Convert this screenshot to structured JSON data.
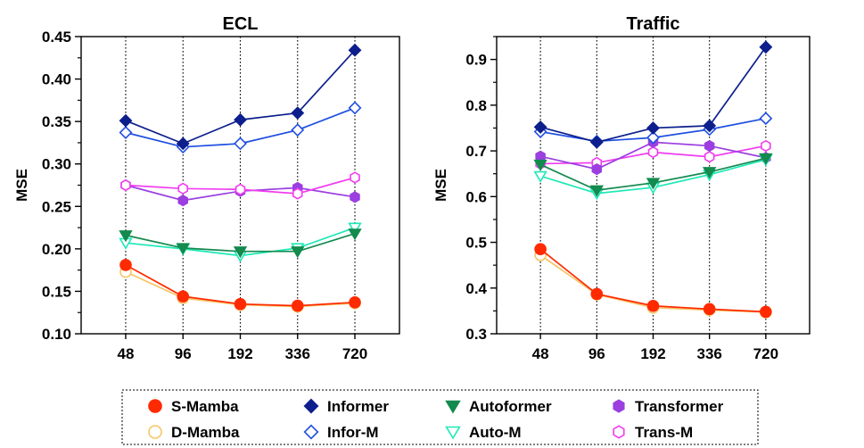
{
  "legend": [
    {
      "name": "S-Mamba",
      "color": "#ff2a00",
      "marker": "circle",
      "filled": true
    },
    {
      "name": "D-Mamba",
      "color": "#f5c66a",
      "marker": "circle",
      "filled": false
    },
    {
      "name": "Informer",
      "color": "#0d1f8c",
      "marker": "diamond",
      "filled": true
    },
    {
      "name": "Infor-M",
      "color": "#1f4fe0",
      "marker": "diamond",
      "filled": false
    },
    {
      "name": "Autoformer",
      "color": "#138a4e",
      "marker": "triangle-down",
      "filled": true
    },
    {
      "name": "Auto-M",
      "color": "#1de9b6",
      "marker": "triangle-down",
      "filled": false
    },
    {
      "name": "Transformer",
      "color": "#9b3fe0",
      "marker": "hexagon",
      "filled": true
    },
    {
      "name": "Trans-M",
      "color": "#f03cf0",
      "marker": "hexagon",
      "filled": false
    }
  ],
  "chart_data": [
    {
      "type": "line",
      "title": "ECL",
      "xlabel": "",
      "ylabel": "MSE",
      "categories": [
        "48",
        "96",
        "192",
        "336",
        "720"
      ],
      "ylim": [
        0.1,
        0.45
      ],
      "yticks": [
        "0.10",
        "0.15",
        "0.20",
        "0.25",
        "0.30",
        "0.35",
        "0.40",
        "0.45"
      ],
      "yticks_values": [
        0.1,
        0.15,
        0.2,
        0.25,
        0.3,
        0.35,
        0.4,
        0.45
      ],
      "vertical_grid": "dotted",
      "series": [
        {
          "name": "Transformer",
          "values": [
            0.275,
            0.257,
            0.268,
            0.272,
            0.261
          ]
        },
        {
          "name": "Trans-M",
          "values": [
            0.275,
            0.271,
            0.27,
            0.265,
            0.284
          ]
        },
        {
          "name": "Auto-M",
          "values": [
            0.207,
            0.2,
            0.192,
            0.201,
            0.225
          ]
        },
        {
          "name": "Autoformer",
          "values": [
            0.216,
            0.201,
            0.197,
            0.197,
            0.218
          ]
        },
        {
          "name": "Infor-M",
          "values": [
            0.337,
            0.32,
            0.324,
            0.34,
            0.366
          ]
        },
        {
          "name": "Informer",
          "values": [
            0.351,
            0.324,
            0.352,
            0.36,
            0.434
          ]
        },
        {
          "name": "D-Mamba",
          "values": [
            0.173,
            0.142,
            0.134,
            0.132,
            0.136
          ]
        },
        {
          "name": "S-Mamba",
          "values": [
            0.181,
            0.144,
            0.135,
            0.133,
            0.137
          ]
        }
      ]
    },
    {
      "type": "line",
      "title": "Traffic",
      "xlabel": "",
      "ylabel": "MSE",
      "categories": [
        "48",
        "96",
        "192",
        "336",
        "720"
      ],
      "ylim": [
        0.3,
        0.95
      ],
      "yticks": [
        "0.3",
        "0.4",
        "0.5",
        "0.6",
        "0.7",
        "0.8",
        "0.9"
      ],
      "yticks_values": [
        0.3,
        0.4,
        0.5,
        0.6,
        0.7,
        0.8,
        0.9
      ],
      "vertical_grid": "dotted",
      "series": [
        {
          "name": "Trans-M",
          "values": [
            0.672,
            0.674,
            0.697,
            0.687,
            0.711
          ]
        },
        {
          "name": "Transformer",
          "values": [
            0.688,
            0.66,
            0.719,
            0.711,
            0.685
          ]
        },
        {
          "name": "Auto-M",
          "values": [
            0.645,
            0.607,
            0.62,
            0.648,
            0.681
          ]
        },
        {
          "name": "Autoformer",
          "values": [
            0.67,
            0.614,
            0.63,
            0.654,
            0.684
          ]
        },
        {
          "name": "Infor-M",
          "values": [
            0.742,
            0.721,
            0.729,
            0.747,
            0.771
          ]
        },
        {
          "name": "Informer",
          "values": [
            0.752,
            0.719,
            0.75,
            0.755,
            0.927
          ]
        },
        {
          "name": "D-Mamba",
          "values": [
            0.472,
            0.386,
            0.357,
            0.352,
            0.347
          ]
        },
        {
          "name": "S-Mamba",
          "values": [
            0.485,
            0.387,
            0.361,
            0.354,
            0.348
          ]
        }
      ]
    }
  ]
}
